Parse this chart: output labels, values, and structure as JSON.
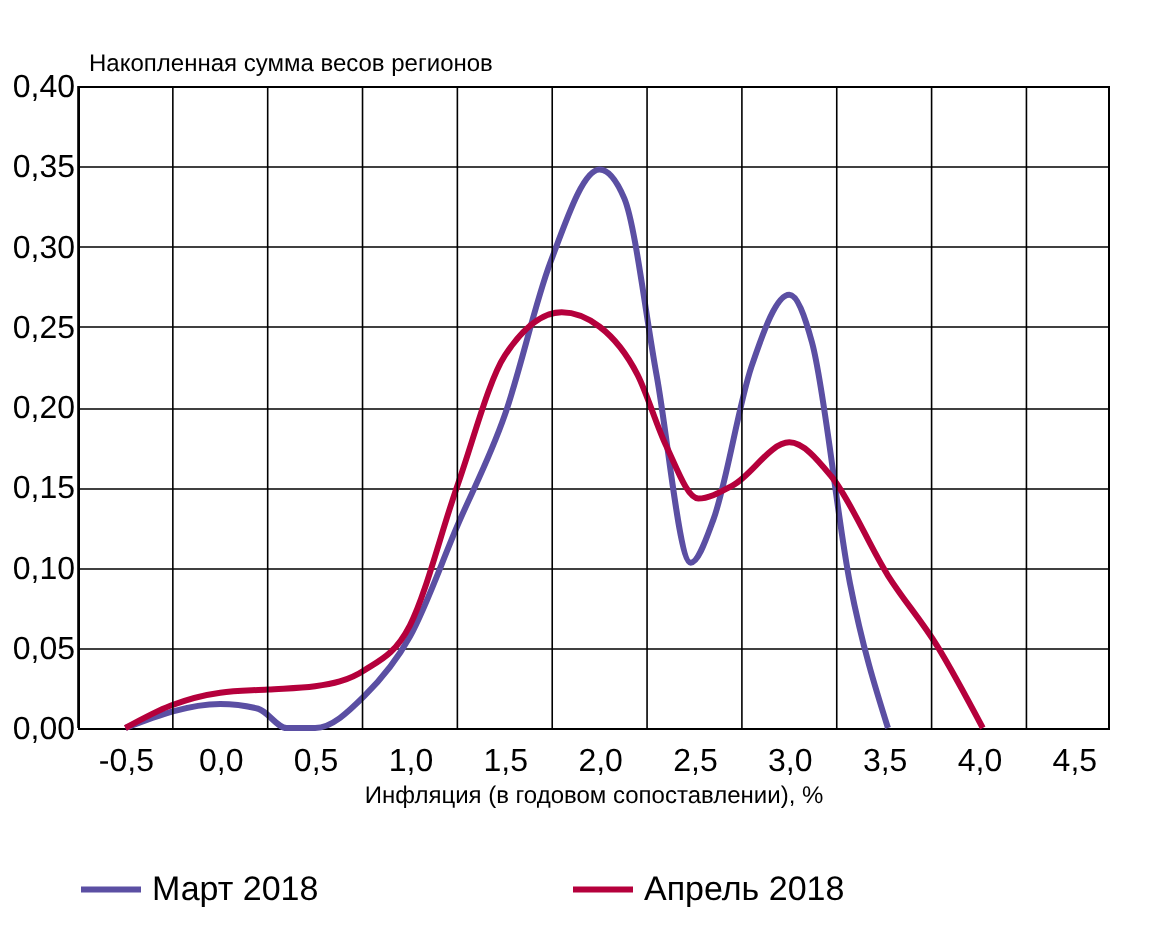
{
  "chart_data": {
    "type": "line",
    "ylabel": "Накопленная сумма весов регионов",
    "xlabel": "Инфляция (в годовом сопоставлении), %",
    "xlim": [
      -0.75,
      4.68
    ],
    "xticks": [
      {
        "value": -0.75,
        "label": null
      },
      {
        "value": -0.5,
        "label": "-0,5"
      },
      {
        "value": -0.25,
        "label": null
      },
      {
        "value": 0,
        "label": "0,0"
      },
      {
        "value": 0.25,
        "label": null
      },
      {
        "value": 0.5,
        "label": "0,5"
      },
      {
        "value": 0.75,
        "label": null
      },
      {
        "value": 1,
        "label": "1,0"
      },
      {
        "value": 1.25,
        "label": null
      },
      {
        "value": 1.5,
        "label": "1,5"
      },
      {
        "value": 1.75,
        "label": null
      },
      {
        "value": 2,
        "label": "2,0"
      },
      {
        "value": 2.25,
        "label": null
      },
      {
        "value": 2.5,
        "label": "2,5"
      },
      {
        "value": 2.75,
        "label": null
      },
      {
        "value": 3,
        "label": "3,0"
      },
      {
        "value": 3.25,
        "label": null
      },
      {
        "value": 3.5,
        "label": "3,5"
      },
      {
        "value": 3.75,
        "label": null
      },
      {
        "value": 4,
        "label": "4,0"
      },
      {
        "value": 4.25,
        "label": null
      },
      {
        "value": 4.5,
        "label": "4,5"
      }
    ],
    "ylim": [
      0,
      0.4
    ],
    "yticks": [
      {
        "value": 0,
        "label": "0,00"
      },
      {
        "value": 0.05,
        "label": "0,05"
      },
      {
        "value": 0.1,
        "label": "0,10"
      },
      {
        "value": 0.15,
        "label": "0,15"
      },
      {
        "value": 0.2,
        "label": "0,20"
      },
      {
        "value": 0.25,
        "label": "0,25"
      },
      {
        "value": 0.3,
        "label": "0,30"
      },
      {
        "value": 0.35,
        "label": "0,35"
      },
      {
        "value": 0.4,
        "label": "0,40"
      }
    ],
    "grid": true,
    "legend": "bottom",
    "marker": "none",
    "line_style": "solid",
    "series": [
      {
        "name": "Март 2018",
        "color": "#5b4fa3",
        "x": [
          -0.5,
          0,
          0.2,
          0.35,
          0.5,
          0.76,
          1,
          1.25,
          1.5,
          1.74,
          2,
          2.13,
          2.3,
          2.48,
          2.6,
          2.8,
          3,
          3.12,
          3.32,
          3.52
        ],
        "values": [
          0,
          0.015,
          0.012,
          0,
          0,
          0.02,
          0.057,
          0.126,
          0.195,
          0.29,
          0.348,
          0.33,
          0.22,
          0.103,
          0.13,
          0.225,
          0.27,
          0.24,
          0.09,
          0
        ]
      },
      {
        "name": "Апрель 2018",
        "color": "#b5003c",
        "x": [
          -0.5,
          -0.26,
          0,
          0.25,
          0.5,
          0.76,
          1,
          1.25,
          1.5,
          1.8,
          2,
          2.2,
          2.35,
          2.52,
          2.7,
          3,
          3.22,
          3.52,
          3.78,
          4.02
        ],
        "values": [
          0,
          0.014,
          0.022,
          0.024,
          0.026,
          0.036,
          0.064,
          0.151,
          0.232,
          0.259,
          0.25,
          0.22,
          0.176,
          0.143,
          0.151,
          0.178,
          0.157,
          0.095,
          0.051,
          0
        ]
      }
    ]
  }
}
